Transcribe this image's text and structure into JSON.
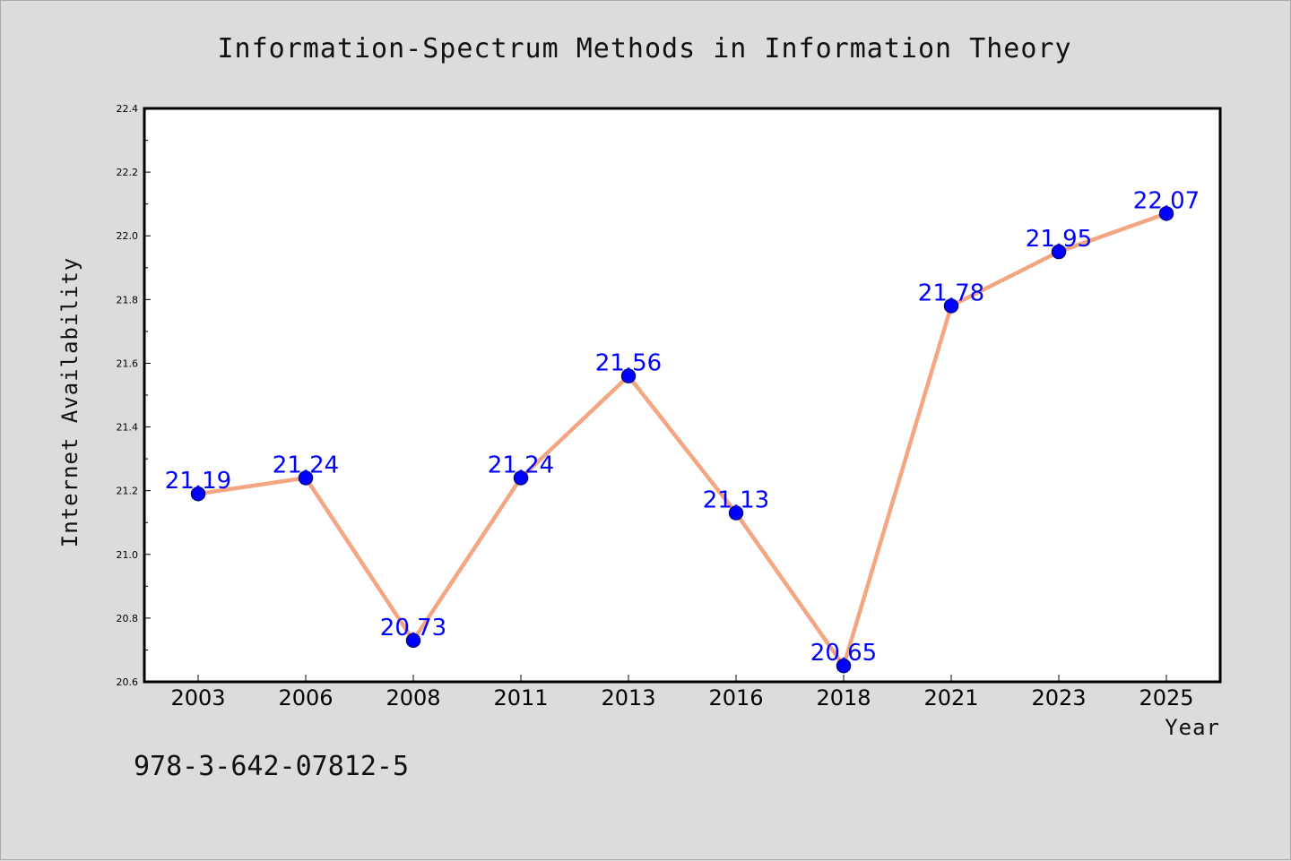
{
  "chart_data": {
    "type": "line",
    "title": "Information-Spectrum Methods in Information Theory",
    "xlabel": "Year",
    "ylabel": "Internet Availability",
    "categories": [
      "2003",
      "2006",
      "2008",
      "2011",
      "2013",
      "2016",
      "2018",
      "2021",
      "2023",
      "2025"
    ],
    "series": [
      {
        "values": [
          21.19,
          21.24,
          20.73,
          21.24,
          21.56,
          21.13,
          20.65,
          21.78,
          21.95,
          22.07
        ],
        "data_labels": [
          "21.19",
          "21.24",
          "20.73",
          "21.24",
          "21.56",
          "21.13",
          "20.65",
          "21.78",
          "21.95",
          "22.07"
        ],
        "line_color": "#f4a582",
        "marker_color": "#0000ff"
      }
    ],
    "ylim": [
      20.6,
      22.4
    ],
    "yticks": [
      "20.6",
      "20.8",
      "21.0",
      "21.2",
      "21.4",
      "21.6",
      "21.8",
      "22.0",
      "22.2",
      "22.4"
    ],
    "grid": false,
    "legend": "none"
  },
  "footer": {
    "text": "978-3-642-07812-5"
  },
  "colors": {
    "background": "#dcdcdc",
    "plot_background": "#ffffff",
    "line": "#f4a582",
    "marker": "#0000ff",
    "data_label": "#0000ff"
  }
}
